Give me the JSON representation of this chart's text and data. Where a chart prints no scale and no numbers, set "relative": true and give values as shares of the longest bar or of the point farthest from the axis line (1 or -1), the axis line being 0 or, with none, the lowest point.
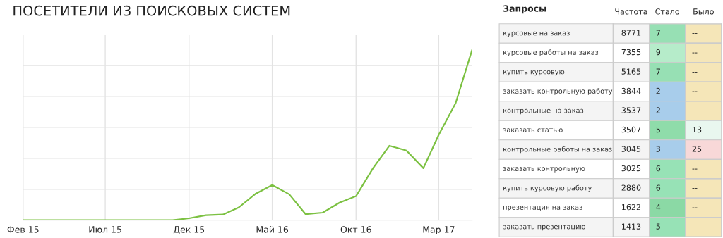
{
  "chart_data": [
    {
      "type": "line",
      "title": "ПОСЕТИТЕЛИ ИЗ ПОИСКОВЫХ СИСТЕМ",
      "relative": true,
      "x": [
        "2015-02",
        "2015-03",
        "2015-04",
        "2015-05",
        "2015-06",
        "2015-07",
        "2015-08",
        "2015-09",
        "2015-10",
        "2015-11",
        "2015-12",
        "2016-01",
        "2016-02",
        "2016-03",
        "2016-04",
        "2016-05",
        "2016-06",
        "2016-07",
        "2016-08",
        "2016-09",
        "2016-10",
        "2016-11",
        "2016-12",
        "2017-01",
        "2017-02",
        "2017-03",
        "2017-04",
        "2017-05"
      ],
      "series": [
        {
          "color": "#7cc142",
          "values": [
            0,
            0,
            0,
            0,
            0,
            0,
            0,
            0,
            0,
            0,
            0.011,
            0.029,
            0.033,
            0.075,
            0.156,
            0.206,
            0.152,
            0.035,
            0.044,
            0.103,
            0.141,
            0.305,
            0.437,
            0.409,
            0.305,
            0.501,
            0.688,
            1.0
          ]
        }
      ],
      "xlim": [
        "2015-02",
        "2017-05"
      ],
      "xticks": [
        {
          "value": "2015-02",
          "label": "Фев 15"
        },
        {
          "value": "2015-07",
          "label": "Июл 15"
        },
        {
          "value": "2015-12",
          "label": "Дек 15"
        },
        {
          "value": "2016-05",
          "label": "Май 16"
        },
        {
          "value": "2016-10",
          "label": "Окт 16"
        },
        {
          "value": "2017-03",
          "label": "Мар 17"
        }
      ],
      "grid": true,
      "marker": "none",
      "line_style": "solid",
      "legend": false
    },
    {
      "type": "heatmap",
      "ylabel": "Запросы",
      "categories": [
        "Частота",
        "Стало",
        "Было"
      ],
      "y_categories": [
        "курсовые на заказ",
        "курсовые работы на заказ",
        "купить курсовую",
        "заказать контрольную работу",
        "контрольные на заказ",
        "заказать статью",
        "контрольные работы на заказ",
        "заказать контрольную",
        "купить курсовую работу",
        "презентация на заказ",
        "заказать презентацию"
      ],
      "cells": [
        [
          8771,
          7,
          null
        ],
        [
          7355,
          9,
          null
        ],
        [
          5165,
          7,
          null
        ],
        [
          3844,
          2,
          null
        ],
        [
          3537,
          2,
          null
        ],
        [
          3507,
          5,
          13
        ],
        [
          3045,
          3,
          25
        ],
        [
          3025,
          6,
          null
        ],
        [
          2880,
          6,
          null
        ],
        [
          1622,
          4,
          null
        ],
        [
          1413,
          5,
          null
        ]
      ],
      "cell_labels": [
        [
          "8771",
          "7",
          "--"
        ],
        [
          "7355",
          "9",
          "--"
        ],
        [
          "5165",
          "7",
          "--"
        ],
        [
          "3844",
          "2",
          "--"
        ],
        [
          "3537",
          "2",
          "--"
        ],
        [
          "3507",
          "5",
          "13"
        ],
        [
          "3045",
          "3",
          "25"
        ],
        [
          "3025",
          "6",
          "--"
        ],
        [
          "2880",
          "6",
          "--"
        ],
        [
          "1622",
          "4",
          "--"
        ],
        [
          "1413",
          "5",
          "--"
        ]
      ],
      "colors": [
        [
          "#f4f4f4",
          "#97e0b4",
          "#f5e6b8"
        ],
        [
          "#ffffff",
          "#b6ecca",
          "#f5e6b8"
        ],
        [
          "#f4f4f4",
          "#97e0b4",
          "#f5e6b8"
        ],
        [
          "#ffffff",
          "#a8cdeb",
          "#f5e6b8"
        ],
        [
          "#f4f4f4",
          "#a8cdeb",
          "#f5e6b8"
        ],
        [
          "#ffffff",
          "#8fdcaa",
          "#e9f7ef"
        ],
        [
          "#f4f4f4",
          "#a8cdeb",
          "#f8d8d8"
        ],
        [
          "#ffffff",
          "#97e2b6",
          "#f5e6b8"
        ],
        [
          "#f4f4f4",
          "#97e2b6",
          "#f5e6b8"
        ],
        [
          "#ffffff",
          "#8bd9a5",
          "#f5e6b8"
        ],
        [
          "#f4f4f4",
          "#97e2b6",
          "#f5e6b8"
        ]
      ]
    }
  ]
}
